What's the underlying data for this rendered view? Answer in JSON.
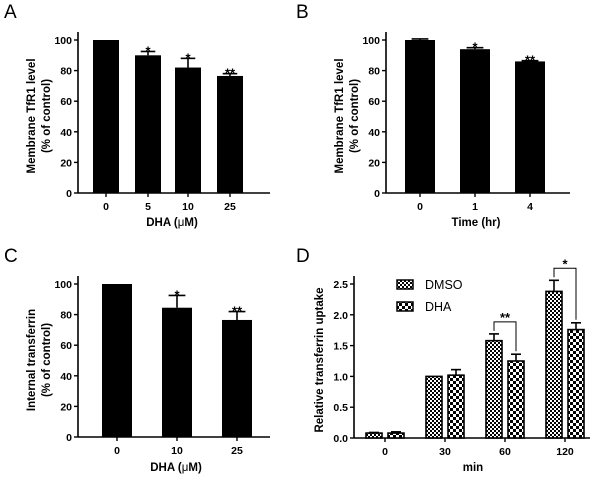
{
  "figure": {
    "panel_letters": [
      "A",
      "B",
      "C",
      "D"
    ],
    "micro_symbol": "μ"
  },
  "chart_data": [
    {
      "panel": "A",
      "type": "bar",
      "categories": [
        "0",
        "5",
        "10",
        "25"
      ],
      "values": [
        100,
        90,
        82,
        76.5
      ],
      "errors": [
        0,
        2.5,
        6,
        1.5
      ],
      "significance": [
        "",
        "*",
        "*",
        "**"
      ],
      "ylabel_lines": [
        "Membrane TfR1 level",
        "(% of control)"
      ],
      "xlabel_prefix": "DHA (",
      "xlabel_unit": "μ",
      "xlabel_suffix": "M)",
      "ylim": [
        0,
        100
      ],
      "yticks": [
        "0",
        "20",
        "40",
        "60",
        "80",
        "100"
      ],
      "ytick_values": [
        0,
        20,
        40,
        60,
        80,
        100
      ],
      "bar_color": "#000000"
    },
    {
      "panel": "B",
      "type": "bar",
      "categories": [
        "0",
        "1",
        "4"
      ],
      "values": [
        100,
        94,
        86
      ],
      "errors": [
        0.7,
        1,
        0.5
      ],
      "significance": [
        "",
        "*",
        "**"
      ],
      "ylabel_lines": [
        "Membrane TfR1 level",
        "(% of control)"
      ],
      "xlabel": "Time (hr)",
      "ylim": [
        0,
        100
      ],
      "yticks": [
        "0",
        "20",
        "40",
        "60",
        "80",
        "100"
      ],
      "ytick_values": [
        0,
        20,
        40,
        60,
        80,
        100
      ],
      "bar_color": "#000000"
    },
    {
      "panel": "C",
      "type": "bar",
      "categories": [
        "0",
        "10",
        "25"
      ],
      "values": [
        100,
        84.5,
        76.5
      ],
      "errors": [
        0,
        8,
        5.5
      ],
      "significance": [
        "",
        "*",
        "**"
      ],
      "ylabel_lines": [
        "Internal transferrin",
        "(% of control)"
      ],
      "xlabel_prefix": "DHA (",
      "xlabel_unit": "μ",
      "xlabel_suffix": "M)",
      "ylim": [
        0,
        100
      ],
      "yticks": [
        "0",
        "20",
        "40",
        "60",
        "80",
        "100"
      ],
      "ytick_values": [
        0,
        20,
        40,
        60,
        80,
        100
      ],
      "bar_color": "#000000"
    },
    {
      "panel": "D",
      "type": "bar",
      "categories": [
        "0",
        "30",
        "60",
        "120"
      ],
      "series": [
        {
          "name": "DMSO",
          "values": [
            0.08,
            1.0,
            1.58,
            2.38
          ],
          "errors": [
            0.01,
            0,
            0.11,
            0.18
          ],
          "pattern": "fine-checker"
        },
        {
          "name": "DHA",
          "values": [
            0.08,
            1.02,
            1.25,
            1.76
          ],
          "errors": [
            0.02,
            0.09,
            0.11,
            0.11
          ],
          "pattern": "coarse-checker"
        }
      ],
      "brackets": [
        {
          "category": "60",
          "label": "**"
        },
        {
          "category": "120",
          "label": "*"
        }
      ],
      "ylabel": "Relative transferrin uptake",
      "xlabel": "min",
      "ylim": [
        0,
        2.5
      ],
      "yticks": [
        "0.0",
        "0.5",
        "1.0",
        "1.5",
        "2.0",
        "2.5"
      ],
      "ytick_values": [
        0,
        0.5,
        1.0,
        1.5,
        2.0,
        2.5
      ],
      "legend_position": "top-left"
    }
  ]
}
